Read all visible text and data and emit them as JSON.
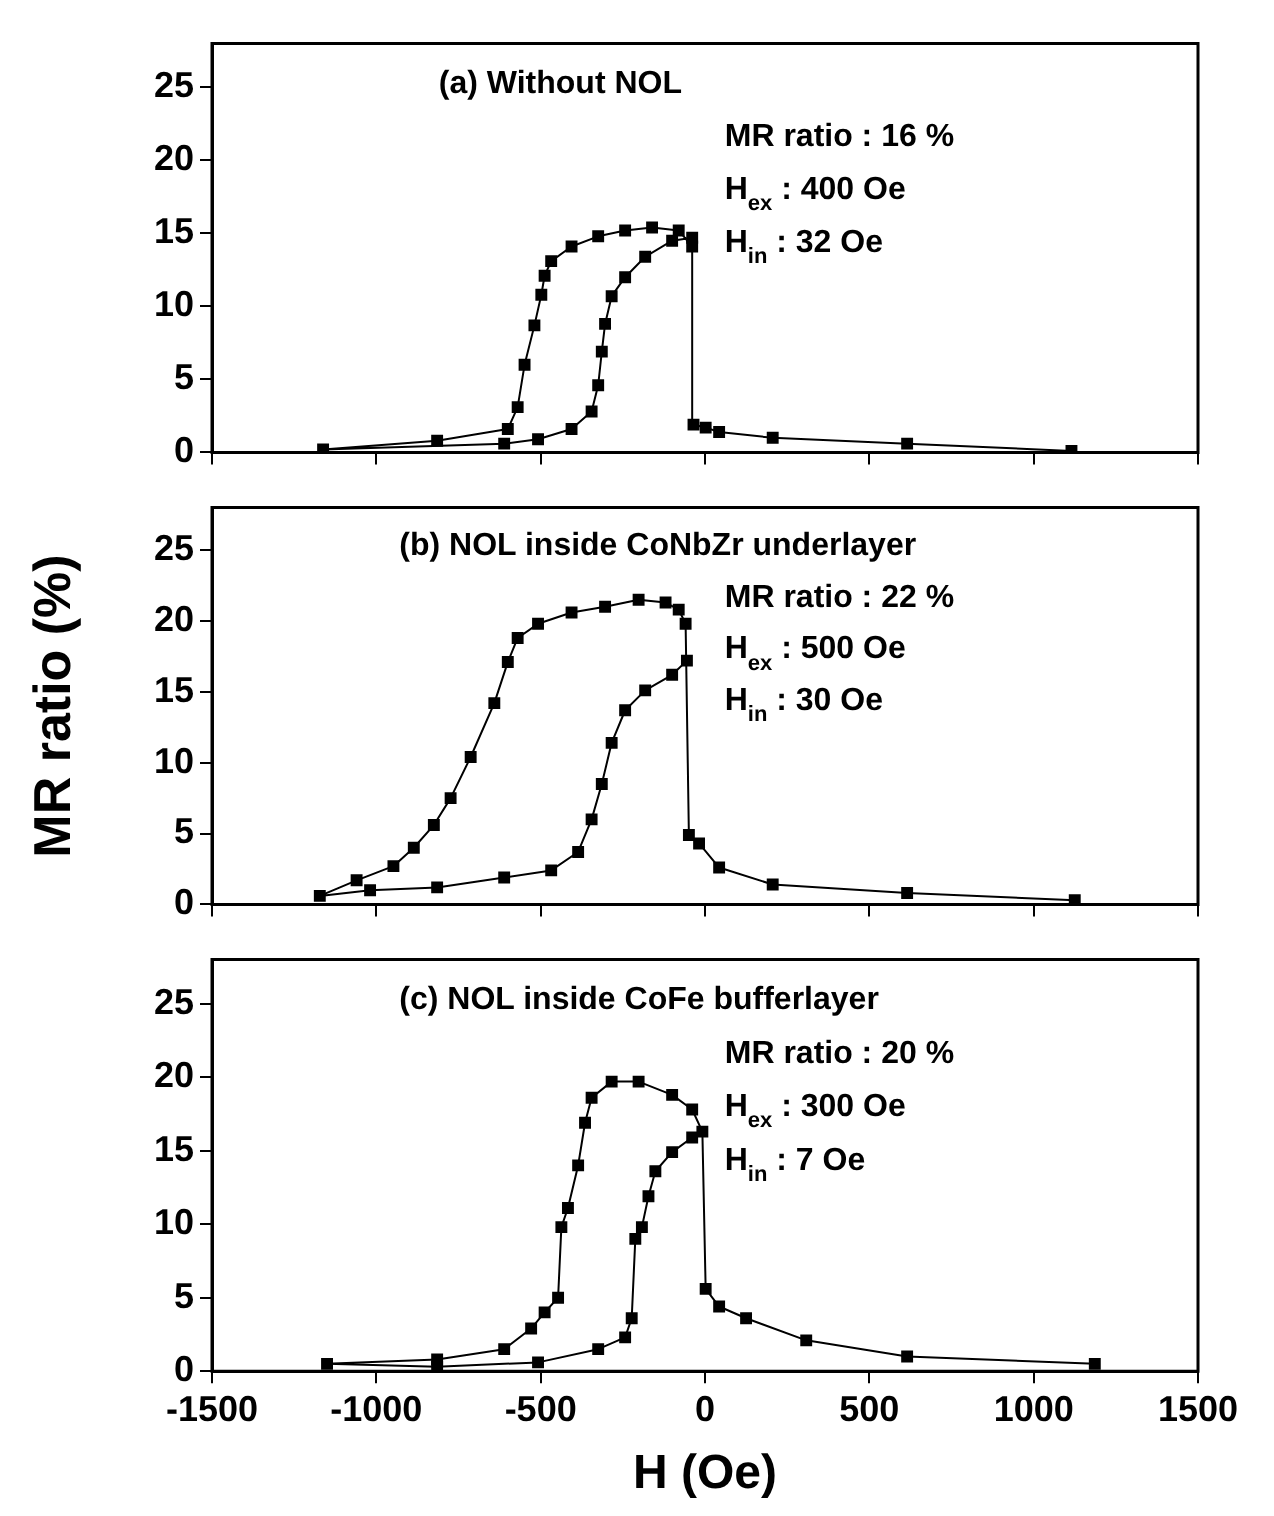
{
  "chart_data": [
    {
      "type": "line",
      "marker": "square",
      "line_style": "solid",
      "tick_labels": "y",
      "grid": false,
      "legend": false,
      "xlim": [
        -1500,
        1500
      ],
      "xticks": [
        -1500,
        -1000,
        -500,
        0,
        500,
        1000,
        1500
      ],
      "ylim": [
        0,
        28
      ],
      "yticks": [
        0,
        5,
        10,
        15,
        20,
        25
      ],
      "annotations": [
        "(a) Without NOL",
        "MR ratio : 16 %",
        "H$_{ex}$ : 400 Oe",
        "H$_{in}$ : 32 Oe"
      ],
      "series": [
        {
          "color": "#000000",
          "x": [
            1115,
            615,
            206,
            43,
            2,
            -35,
            -39,
            -80,
            -161,
            -243,
            -325,
            -406,
            -468,
            -488,
            -498,
            -519,
            -549,
            -570,
            -600,
            -815,
            -1162,
            -611,
            -508,
            -406,
            -345,
            -325,
            -314,
            -304,
            -284,
            -243,
            -182,
            -100,
            -39
          ],
          "values": [
            0.1,
            0.6,
            1.0,
            1.4,
            1.7,
            1.9,
            14.1,
            15.2,
            15.4,
            15.2,
            14.8,
            14.1,
            13.1,
            12.1,
            10.8,
            8.7,
            6.0,
            3.1,
            1.6,
            0.8,
            0.2,
            0.6,
            0.9,
            1.6,
            2.8,
            4.6,
            6.9,
            8.8,
            10.7,
            12.0,
            13.4,
            14.5,
            14.7
          ]
        }
      ]
    },
    {
      "type": "line",
      "marker": "square",
      "line_style": "solid",
      "tick_labels": "y",
      "grid": false,
      "legend": false,
      "ylabel": "MR ratio (%)",
      "xlim": [
        -1500,
        1500
      ],
      "xticks": [
        -1500,
        -1000,
        -500,
        0,
        500,
        1000,
        1500
      ],
      "ylim": [
        0,
        28
      ],
      "yticks": [
        0,
        5,
        10,
        15,
        20,
        25
      ],
      "annotations": [
        "(b) NOL inside CoNbZr underlayer",
        "MR ratio : 22 %",
        "H$_{ex}$ : 500 Oe",
        "H$_{in}$ : 30 Oe"
      ],
      "series": [
        {
          "color": "#000000",
          "x": [
            1125,
            615,
            206,
            43,
            -18,
            -49,
            -59,
            -80,
            -120,
            -202,
            -304,
            -406,
            -508,
            -570,
            -600,
            -641,
            -713,
            -774,
            -825,
            -886,
            -948,
            -1060,
            -1172,
            -1019,
            -815,
            -611,
            -468,
            -386,
            -345,
            -314,
            -284,
            -243,
            -182,
            -100,
            -55
          ],
          "values": [
            0.3,
            0.8,
            1.4,
            2.6,
            4.3,
            4.9,
            19.8,
            20.8,
            21.3,
            21.5,
            21.0,
            20.6,
            19.8,
            18.8,
            17.1,
            14.2,
            10.4,
            7.5,
            5.6,
            4.0,
            2.7,
            1.7,
            0.6,
            1.0,
            1.2,
            1.9,
            2.4,
            3.7,
            6.0,
            8.5,
            11.4,
            13.7,
            15.1,
            16.2,
            17.2
          ]
        }
      ]
    },
    {
      "type": "line",
      "marker": "square",
      "line_style": "solid",
      "grid": false,
      "legend": false,
      "xlabel": "H (Oe)",
      "xlim": [
        -1500,
        1500
      ],
      "xticks": [
        -1500,
        -1000,
        -500,
        0,
        500,
        1000,
        1500
      ],
      "ylim": [
        0,
        28
      ],
      "yticks": [
        0,
        5,
        10,
        15,
        20,
        25
      ],
      "annotations": [
        "(c) NOL inside CoFe bufferlayer",
        "MR ratio : 20 %",
        "H$_{ex}$ : 300 Oe",
        "H$_{in}$ : 7 Oe"
      ],
      "series": [
        {
          "color": "#000000",
          "x": [
            1186,
            615,
            308,
            125,
            43,
            2,
            -8,
            -39,
            -100,
            -202,
            -284,
            -345,
            -365,
            -386,
            -417,
            -437,
            -447,
            -488,
            -529,
            -611,
            -815,
            -1150,
            -815,
            -508,
            -325,
            -243,
            -223,
            -212,
            -192,
            -172,
            -151,
            -100,
            -39
          ],
          "values": [
            0.5,
            1.0,
            2.1,
            3.6,
            4.4,
            5.6,
            16.3,
            17.8,
            18.8,
            19.7,
            19.7,
            18.6,
            16.9,
            14.0,
            11.1,
            9.8,
            5.0,
            4.0,
            2.9,
            1.5,
            0.8,
            0.5,
            0.3,
            0.6,
            1.5,
            2.3,
            3.6,
            9.0,
            9.8,
            11.9,
            13.6,
            14.9,
            15.9
          ]
        }
      ]
    }
  ]
}
